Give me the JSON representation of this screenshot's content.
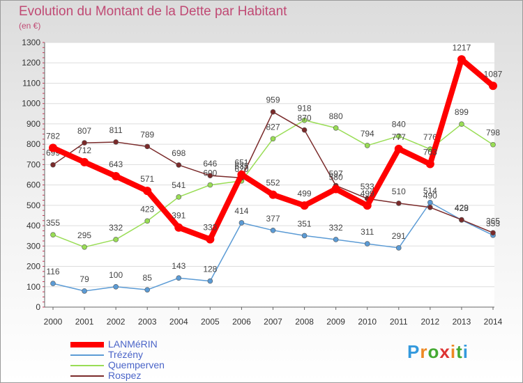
{
  "chart_data": {
    "type": "line",
    "title": "Evolution du Montant de la Dette par Habitant",
    "subtitle": "(en €)",
    "x": [
      "2000",
      "2001",
      "2002",
      "2003",
      "2004",
      "2005",
      "2006",
      "2007",
      "2008",
      "2009",
      "2010",
      "2011",
      "2012",
      "2013",
      "2014"
    ],
    "ylim": [
      0,
      1300
    ],
    "yticks": [
      0,
      100,
      200,
      300,
      400,
      500,
      600,
      700,
      800,
      900,
      1000,
      1100,
      1200,
      1300
    ],
    "grid": true,
    "legend_position": "bottom-left",
    "series": [
      {
        "name": "LANMéRIN",
        "color": "#ff0000",
        "values": [
          782,
          712,
          643,
          571,
          391,
          333,
          651,
          552,
          499,
          580,
          499,
          777,
          703,
          1217,
          1087
        ]
      },
      {
        "name": "Trézény",
        "color": "#5b9bd5",
        "values": [
          116,
          79,
          100,
          85,
          143,
          128,
          414,
          377,
          351,
          332,
          311,
          291,
          514,
          428,
          353
        ]
      },
      {
        "name": "Quemperven",
        "color": "#99dd55",
        "values": [
          355,
          295,
          332,
          423,
          541,
          600,
          620,
          827,
          918,
          880,
          794,
          840,
          776,
          899,
          798
        ]
      },
      {
        "name": "Rospez",
        "color": "#7a2a2a",
        "values": [
          699,
          807,
          811,
          789,
          698,
          646,
          635,
          959,
          870,
          597,
          533,
          510,
          490,
          429,
          365
        ]
      }
    ]
  },
  "brand": {
    "letters": [
      "P",
      "r",
      "o",
      "x",
      "i",
      "t",
      "i"
    ],
    "colors": [
      "#3399dd",
      "#ee8822",
      "#44aa33",
      "#dd3333",
      "#ee8822",
      "#44aa33",
      "#3399dd"
    ]
  }
}
